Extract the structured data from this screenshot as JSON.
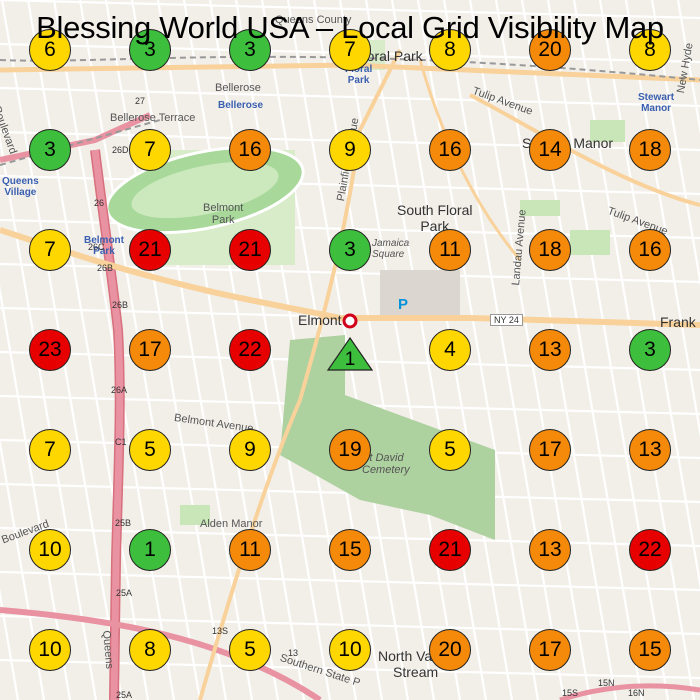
{
  "title": "Blessing World USA – Local Grid Visibility Map",
  "colors": {
    "green": "#3dbf3d",
    "yellow": "#ffd700",
    "orange": "#f58a0a",
    "red": "#e60000",
    "land": "#f2efe9",
    "park": "#c8e6b8",
    "cemetery": "#aed1a0",
    "road": "#ffffff",
    "highway": "#e892a2",
    "trunk": "#f8d29a"
  },
  "grid": [
    [
      6,
      3,
      3,
      7,
      8,
      20,
      8
    ],
    [
      3,
      7,
      16,
      9,
      16,
      14,
      18
    ],
    [
      7,
      21,
      21,
      3,
      11,
      18,
      16
    ],
    [
      23,
      17,
      22,
      1,
      4,
      13,
      3
    ],
    [
      7,
      5,
      9,
      19,
      5,
      17,
      13
    ],
    [
      10,
      1,
      11,
      15,
      21,
      13,
      22
    ],
    [
      10,
      8,
      5,
      10,
      20,
      17,
      15
    ]
  ],
  "business_marker": {
    "label": "1",
    "icon": "triangle-icon"
  },
  "map_labels": {
    "queens_county": "Queens County",
    "floral_park": "Floral Park",
    "floral_park_blue": "Floral\nPark",
    "bellerose": "Bellerose",
    "bellerose_blue": "Bellerose",
    "bellerose_terrace": "Bellerose Terrace",
    "queens_village": "Queens\nVillage",
    "belmont_park_blue": "Belmont\nPark",
    "belmont_park": "Belmont\nPark",
    "south_floral_park": "South Floral\nPark",
    "jamaica_square": "Jamaica\nSquare",
    "stewart_manor": "Stewart\nManor",
    "stewart_manor_2": "Stewart Manor",
    "elmont": "Elmont",
    "franklin": "Frank",
    "ny24": "NY 24",
    "parking": "P",
    "tulip_avenue": "Tulip Avenue",
    "tulip_avenue_2": "Tulip Avenue",
    "belmont_avenue": "Belmont Avenue",
    "alden_manor": "Alden Manor",
    "st_david_cemetery": "St David\nCemetery",
    "north_valley_stream": "North Valley\nStream",
    "southern_state": "Southern State P",
    "landau_avenue": "Landau Avenue",
    "plainfield_avenue": "Plainfield Avenue",
    "new_hyde": "New Hyde",
    "exit_26": "26",
    "exit_26b": "26B",
    "exit_26c": "26C",
    "exit_26d": "26D",
    "exit_27": "27",
    "exit_26a": "26A",
    "exit_25b": "25B",
    "exit_25a": "25A",
    "exit_13s": "13S",
    "exit_13": "13",
    "exit_15s": "15S",
    "exit_15n": "15N",
    "exit_16n": "16N",
    "exit_c1": "C1",
    "boulevard": "Boulevard",
    "boulevard_2": "Boulevard",
    "queens_road": "Queens"
  }
}
